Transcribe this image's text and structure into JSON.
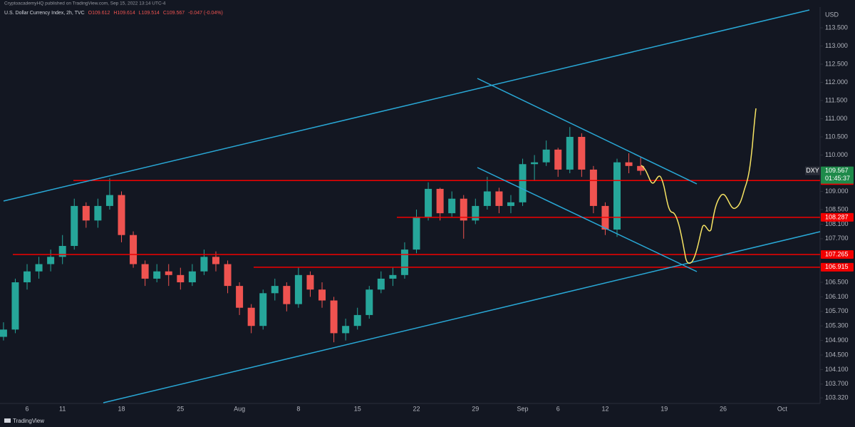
{
  "header": {
    "publisher": "CryptoacademyHQ published on TradingView.com, Sep 15, 2022 13:14 UTC-4",
    "symbol": "U.S. Dollar Currency Index, 2h, TVC",
    "legend": [
      "O109.612",
      "H109.614",
      "L109.514",
      "C109.567",
      "-0.047 (-0.04%)"
    ],
    "brand": "TradingView"
  },
  "chart_data": {
    "type": "candlestick",
    "currency": "USD",
    "ticker": "DXY",
    "countdown": "01:45:37",
    "up_color": "#26a69a",
    "down_color": "#ef5350",
    "grid": false,
    "categories": [
      null,
      null,
      "6",
      null,
      null,
      "11",
      null,
      null,
      null,
      null,
      "18",
      null,
      null,
      null,
      null,
      "25",
      null,
      null,
      null,
      null,
      "Aug",
      null,
      null,
      null,
      null,
      "8",
      null,
      null,
      null,
      null,
      "15",
      null,
      null,
      null,
      null,
      "22",
      null,
      null,
      null,
      null,
      "29",
      null,
      null,
      null,
      "Sep",
      null,
      null,
      "6",
      null,
      null,
      null,
      "12",
      null,
      null,
      null,
      null,
      "19",
      null,
      null,
      null,
      null,
      "26",
      null,
      null,
      null,
      null,
      "Oct"
    ],
    "open": [
      105.0,
      105.2,
      106.5,
      106.8,
      107.0,
      107.2,
      107.5,
      108.6,
      108.2,
      108.6,
      108.9,
      107.8,
      107.0,
      106.6,
      106.8,
      106.7,
      106.5,
      106.8,
      107.2,
      107.0,
      106.4,
      105.8,
      105.3,
      106.2,
      106.4,
      105.9,
      106.7,
      106.3,
      106.0,
      105.1,
      105.3,
      105.6,
      106.3,
      106.6,
      106.7,
      107.4,
      108.3,
      109.07,
      108.4,
      108.8,
      108.2,
      108.6,
      109.0,
      108.6,
      108.7,
      109.75,
      109.8,
      110.15,
      109.6,
      110.5,
      109.6,
      108.6,
      107.95,
      109.8,
      109.7,
      null,
      null,
      null,
      null,
      null,
      null,
      null,
      null,
      null,
      null,
      null,
      null
    ],
    "high": [
      105.4,
      106.6,
      107.0,
      107.2,
      107.4,
      107.8,
      108.8,
      108.7,
      108.8,
      109.36,
      109.0,
      107.9,
      107.1,
      107.0,
      107.0,
      106.9,
      107.0,
      107.4,
      107.35,
      107.1,
      106.5,
      105.9,
      106.3,
      106.6,
      106.5,
      106.9,
      106.8,
      106.5,
      106.1,
      105.5,
      105.8,
      106.4,
      106.8,
      106.9,
      107.6,
      108.5,
      109.25,
      109.1,
      109.0,
      108.9,
      108.8,
      109.4,
      109.1,
      108.9,
      109.9,
      110.0,
      110.4,
      110.2,
      110.77,
      110.6,
      109.7,
      108.7,
      109.9,
      110.05,
      109.95,
      null,
      null,
      null,
      null,
      null,
      null,
      null,
      null,
      null,
      null,
      null,
      null
    ],
    "low": [
      104.9,
      105.1,
      106.3,
      106.6,
      106.8,
      107.0,
      107.4,
      108.0,
      108.0,
      108.5,
      107.6,
      106.9,
      106.4,
      106.5,
      106.4,
      106.3,
      106.4,
      106.7,
      106.8,
      106.2,
      105.6,
      105.1,
      105.2,
      106.0,
      105.7,
      105.8,
      106.1,
      105.8,
      104.85,
      104.9,
      105.2,
      105.5,
      106.2,
      106.4,
      106.6,
      107.3,
      108.2,
      108.2,
      108.3,
      107.7,
      108.1,
      108.5,
      108.4,
      108.4,
      108.6,
      109.3,
      109.7,
      109.4,
      109.5,
      109.4,
      108.4,
      107.8,
      107.75,
      109.5,
      109.45,
      null,
      null,
      null,
      null,
      null,
      null,
      null,
      null,
      null,
      null,
      null,
      null
    ],
    "close": [
      105.2,
      106.5,
      106.8,
      107.0,
      107.2,
      107.5,
      108.6,
      108.2,
      108.6,
      108.9,
      107.8,
      107.0,
      106.6,
      106.8,
      106.7,
      106.5,
      106.8,
      107.2,
      107.0,
      106.4,
      105.8,
      105.3,
      106.2,
      106.4,
      105.9,
      106.7,
      106.3,
      106.0,
      105.1,
      105.3,
      105.6,
      106.3,
      106.6,
      106.7,
      107.4,
      108.3,
      109.07,
      108.4,
      108.8,
      108.2,
      108.6,
      109.0,
      108.6,
      108.7,
      109.75,
      109.8,
      110.15,
      109.6,
      110.5,
      109.6,
      108.6,
      107.95,
      109.8,
      109.7,
      109.567,
      null,
      null,
      null,
      null,
      null,
      null,
      null,
      null,
      null,
      null,
      null,
      null
    ],
    "ylim": [
      103.167,
      114.265
    ],
    "yticks": [
      {
        "value": 113.5,
        "label": "113.500"
      },
      {
        "value": 113,
        "label": "113.000"
      },
      {
        "value": 112.5,
        "label": "112.500"
      },
      {
        "value": 112,
        "label": "112.000"
      },
      {
        "value": 111.5,
        "label": "111.500"
      },
      {
        "value": 111,
        "label": "111.000"
      },
      {
        "value": 110.5,
        "label": "110.500"
      },
      {
        "value": 110,
        "label": "110.000"
      },
      {
        "value": 109,
        "label": "109.000"
      },
      {
        "value": 108.5,
        "label": "108.500"
      },
      {
        "value": 108.1,
        "label": "108.100"
      },
      {
        "value": 107.7,
        "label": "107.700"
      },
      {
        "value": 106.5,
        "label": "106.500"
      },
      {
        "value": 106.1,
        "label": "106.100"
      },
      {
        "value": 105.7,
        "label": "105.700"
      },
      {
        "value": 105.3,
        "label": "105.300"
      },
      {
        "value": 104.9,
        "label": "104.900"
      },
      {
        "value": 104.5,
        "label": "104.500"
      },
      {
        "value": 104.1,
        "label": "104.100"
      },
      {
        "value": 103.7,
        "label": "103.700"
      },
      {
        "value": 103.32,
        "label": "103.320"
      }
    ],
    "last_price": 109.567,
    "last_color": "#1e8a4a",
    "levels": [
      109.299,
      108.287,
      107.265,
      106.915
    ],
    "level_color": "#f20000"
  }
}
